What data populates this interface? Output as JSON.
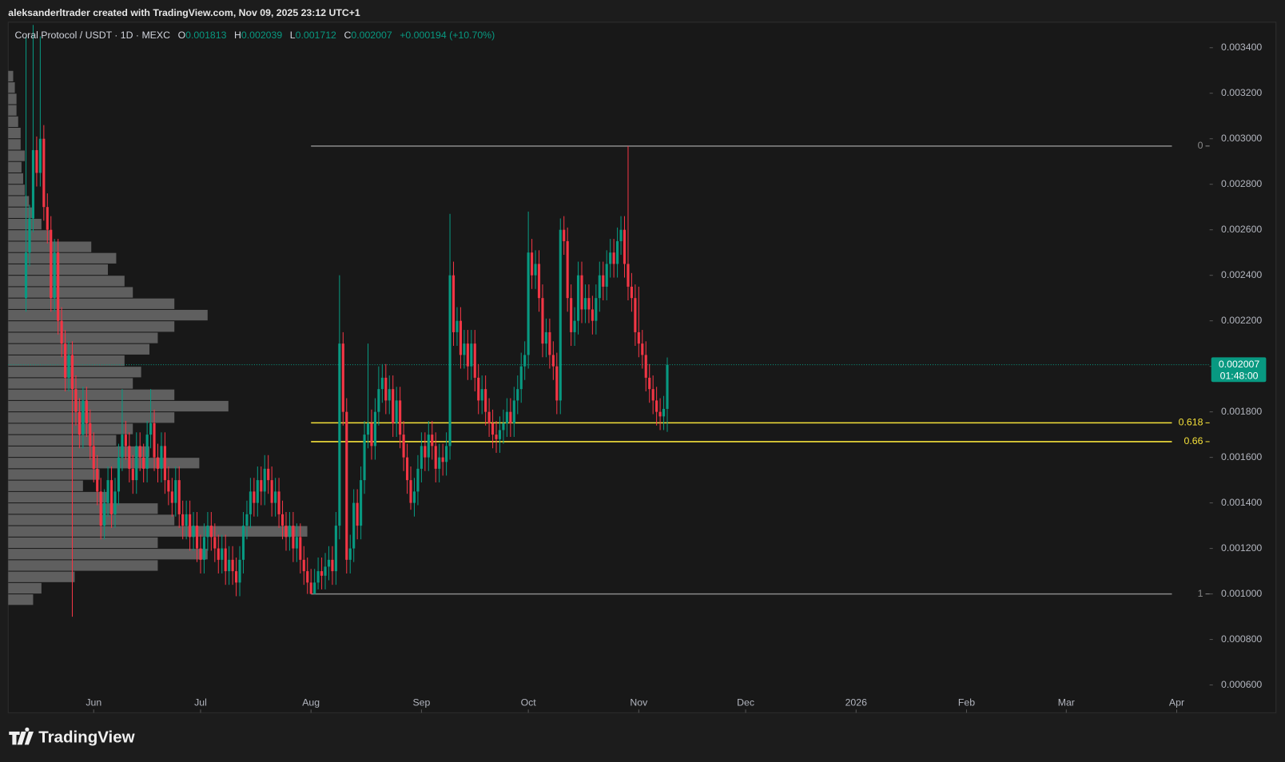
{
  "watermark": "aleksanderltrader created with TradingView.com, Nov 09, 2025 23:12 UTC+1",
  "legend": {
    "symbol": "Coral Protocol / USDT · 1D · MEXC",
    "items": [
      {
        "label": "O",
        "value": "0.001813"
      },
      {
        "label": "H",
        "value": "0.002039"
      },
      {
        "label": "L",
        "value": "0.001712"
      },
      {
        "label": "C",
        "value": "0.002007"
      }
    ],
    "change": "+0.000194 (+10.70%)"
  },
  "logo": "TradingView",
  "chart_data": {
    "type": "candlestick",
    "up_color": "#089981",
    "down_color": "#f23645",
    "x": [
      "2025-05-13",
      "2025-05-14",
      "2025-05-15",
      "2025-05-16",
      "2025-05-17",
      "2025-05-18",
      "2025-05-19",
      "2025-05-20",
      "2025-05-21",
      "2025-05-22",
      "2025-05-23",
      "2025-05-24",
      "2025-05-25",
      "2025-05-26",
      "2025-05-27",
      "2025-05-28",
      "2025-05-29",
      "2025-05-30",
      "2025-05-31",
      "2025-06-01",
      "2025-06-02",
      "2025-06-03",
      "2025-06-04",
      "2025-06-05",
      "2025-06-06",
      "2025-06-07",
      "2025-06-08",
      "2025-06-09",
      "2025-06-10",
      "2025-06-11",
      "2025-06-12",
      "2025-06-13",
      "2025-06-14",
      "2025-06-15",
      "2025-06-16",
      "2025-06-17",
      "2025-06-18",
      "2025-06-19",
      "2025-06-20",
      "2025-06-21",
      "2025-06-22",
      "2025-06-23",
      "2025-06-24",
      "2025-06-25",
      "2025-06-26",
      "2025-06-27",
      "2025-06-28",
      "2025-06-29",
      "2025-06-30",
      "2025-07-01",
      "2025-07-02",
      "2025-07-03",
      "2025-07-04",
      "2025-07-05",
      "2025-07-06",
      "2025-07-07",
      "2025-07-08",
      "2025-07-09",
      "2025-07-10",
      "2025-07-11",
      "2025-07-12",
      "2025-07-13",
      "2025-07-14",
      "2025-07-15",
      "2025-07-16",
      "2025-07-17",
      "2025-07-18",
      "2025-07-19",
      "2025-07-20",
      "2025-07-21",
      "2025-07-22",
      "2025-07-23",
      "2025-07-24",
      "2025-07-25",
      "2025-07-26",
      "2025-07-27",
      "2025-07-28",
      "2025-07-29",
      "2025-07-30",
      "2025-07-31",
      "2025-08-01",
      "2025-08-02",
      "2025-08-03",
      "2025-08-04",
      "2025-08-05",
      "2025-08-06",
      "2025-08-07",
      "2025-08-08",
      "2025-08-09",
      "2025-08-10",
      "2025-08-11",
      "2025-08-12",
      "2025-08-13",
      "2025-08-14",
      "2025-08-15",
      "2025-08-16",
      "2025-08-17",
      "2025-08-18",
      "2025-08-19",
      "2025-08-20",
      "2025-08-21",
      "2025-08-22",
      "2025-08-23",
      "2025-08-24",
      "2025-08-25",
      "2025-08-26",
      "2025-08-27",
      "2025-08-28",
      "2025-08-29",
      "2025-08-30",
      "2025-08-31",
      "2025-09-01",
      "2025-09-02",
      "2025-09-03",
      "2025-09-04",
      "2025-09-05",
      "2025-09-06",
      "2025-09-07",
      "2025-09-08",
      "2025-09-09",
      "2025-09-10",
      "2025-09-11",
      "2025-09-12",
      "2025-09-13",
      "2025-09-14",
      "2025-09-15",
      "2025-09-16",
      "2025-09-17",
      "2025-09-18",
      "2025-09-19",
      "2025-09-20",
      "2025-09-21",
      "2025-09-22",
      "2025-09-23",
      "2025-09-24",
      "2025-09-25",
      "2025-09-26",
      "2025-09-27",
      "2025-09-28",
      "2025-09-29",
      "2025-09-30",
      "2025-10-01",
      "2025-10-02",
      "2025-10-03",
      "2025-10-04",
      "2025-10-05",
      "2025-10-06",
      "2025-10-07",
      "2025-10-08",
      "2025-10-09",
      "2025-10-10",
      "2025-10-11",
      "2025-10-12",
      "2025-10-13",
      "2025-10-14",
      "2025-10-15",
      "2025-10-16",
      "2025-10-17",
      "2025-10-18",
      "2025-10-19",
      "2025-10-20",
      "2025-10-21",
      "2025-10-22",
      "2025-10-23",
      "2025-10-24",
      "2025-10-25",
      "2025-10-26",
      "2025-10-27",
      "2025-10-28",
      "2025-10-29",
      "2025-10-30",
      "2025-10-31",
      "2025-11-01",
      "2025-11-02",
      "2025-11-03",
      "2025-11-04",
      "2025-11-05",
      "2025-11-06",
      "2025-11-07",
      "2025-11-08",
      "2025-11-09"
    ],
    "open": [
      0.0023,
      0.0025,
      0.00265,
      0.00295,
      0.00285,
      0.003,
      0.0027,
      0.0026,
      0.0023,
      0.0025,
      0.0022,
      0.0021,
      0.00195,
      0.00205,
      0.0019,
      0.0018,
      0.0017,
      0.00185,
      0.00175,
      0.00165,
      0.00155,
      0.00145,
      0.0013,
      0.0014,
      0.0015,
      0.00135,
      0.00145,
      0.0016,
      0.0017,
      0.00165,
      0.00155,
      0.0015,
      0.00165,
      0.0016,
      0.00155,
      0.0017,
      0.00175,
      0.0016,
      0.00155,
      0.00165,
      0.0015,
      0.00145,
      0.0014,
      0.0015,
      0.00135,
      0.0013,
      0.00135,
      0.00125,
      0.0013,
      0.0012,
      0.00115,
      0.00125,
      0.0013,
      0.00125,
      0.0012,
      0.00115,
      0.0012,
      0.0011,
      0.00115,
      0.0011,
      0.00105,
      0.00115,
      0.0013,
      0.00135,
      0.00145,
      0.0014,
      0.0015,
      0.00145,
      0.00155,
      0.0015,
      0.0014,
      0.00145,
      0.00135,
      0.0013,
      0.00125,
      0.0013,
      0.0012,
      0.00125,
      0.00115,
      0.0011,
      0.00105,
      0.001,
      0.00105,
      0.0011,
      0.00108,
      0.00112,
      0.00115,
      0.0011,
      0.0013,
      0.0021,
      0.0018,
      0.00115,
      0.0012,
      0.0014,
      0.0013,
      0.0015,
      0.0017,
      0.00175,
      0.00165,
      0.0018,
      0.0019,
      0.00195,
      0.00185,
      0.0019,
      0.00175,
      0.00185,
      0.0017,
      0.0016,
      0.0015,
      0.0014,
      0.00145,
      0.00155,
      0.00165,
      0.0016,
      0.0017,
      0.00165,
      0.00155,
      0.0016,
      0.00158,
      0.00165,
      0.0024,
      0.00215,
      0.0022,
      0.00205,
      0.0021,
      0.002,
      0.0021,
      0.00195,
      0.00185,
      0.0019,
      0.0018,
      0.00175,
      0.0017,
      0.00168,
      0.00172,
      0.00175,
      0.0018,
      0.00175,
      0.00185,
      0.0019,
      0.002,
      0.00205,
      0.0025,
      0.0024,
      0.00245,
      0.0023,
      0.0021,
      0.00215,
      0.00205,
      0.002,
      0.00185,
      0.0026,
      0.00255,
      0.0023,
      0.00215,
      0.0022,
      0.0024,
      0.00225,
      0.0023,
      0.00225,
      0.0022,
      0.0023,
      0.0024,
      0.00235,
      0.00245,
      0.0025,
      0.00245,
      0.00255,
      0.0026,
      0.00245,
      0.00235,
      0.0023,
      0.00215,
      0.0021,
      0.00205,
      0.00195,
      0.0019,
      0.00185,
      0.0018,
      0.00178,
      0.001813
    ],
    "high": [
      0.00345,
      0.00271,
      0.0035,
      0.00301,
      0.00345,
      0.00306,
      0.00276,
      0.00266,
      0.00256,
      0.00256,
      0.00226,
      0.00216,
      0.00211,
      0.00211,
      0.00196,
      0.00186,
      0.00191,
      0.00191,
      0.00181,
      0.00171,
      0.00161,
      0.00151,
      0.00146,
      0.00156,
      0.00156,
      0.00151,
      0.00166,
      0.0019,
      0.00176,
      0.00171,
      0.00161,
      0.00171,
      0.00171,
      0.00166,
      0.00176,
      0.0019,
      0.00181,
      0.00166,
      0.00171,
      0.00171,
      0.00156,
      0.00151,
      0.00156,
      0.00156,
      0.00141,
      0.00141,
      0.00141,
      0.00136,
      0.00136,
      0.00126,
      0.00131,
      0.00136,
      0.00136,
      0.00131,
      0.00126,
      0.00126,
      0.00126,
      0.00121,
      0.00121,
      0.00116,
      0.00121,
      0.00136,
      0.00141,
      0.00151,
      0.00151,
      0.00156,
      0.00156,
      0.00161,
      0.00161,
      0.00156,
      0.00151,
      0.00151,
      0.00141,
      0.00136,
      0.00136,
      0.00136,
      0.00131,
      0.00131,
      0.00121,
      0.00116,
      0.00111,
      0.00111,
      0.00116,
      0.00116,
      0.00118,
      0.00121,
      0.00121,
      0.00136,
      0.0024,
      0.00215,
      0.00186,
      0.00126,
      0.00146,
      0.00146,
      0.00156,
      0.00176,
      0.0021,
      0.00181,
      0.00186,
      0.002,
      0.00201,
      0.00201,
      0.00196,
      0.00196,
      0.00191,
      0.00191,
      0.00176,
      0.00166,
      0.00156,
      0.00151,
      0.00161,
      0.00171,
      0.00171,
      0.00176,
      0.00176,
      0.00171,
      0.00166,
      0.00166,
      0.00171,
      0.00267,
      0.00246,
      0.00226,
      0.00226,
      0.00216,
      0.00216,
      0.00216,
      0.00216,
      0.00201,
      0.00196,
      0.00196,
      0.00186,
      0.00181,
      0.00176,
      0.00178,
      0.00181,
      0.00186,
      0.00186,
      0.00191,
      0.00196,
      0.00206,
      0.00211,
      0.00268,
      0.00256,
      0.00251,
      0.00251,
      0.00236,
      0.00221,
      0.00221,
      0.00211,
      0.00206,
      0.00265,
      0.00266,
      0.00261,
      0.00236,
      0.00226,
      0.00246,
      0.00246,
      0.00236,
      0.00236,
      0.00231,
      0.00236,
      0.00246,
      0.00246,
      0.00251,
      0.00256,
      0.00256,
      0.00261,
      0.00266,
      0.00266,
      0.002968,
      0.00241,
      0.00236,
      0.00235,
      0.00216,
      0.00211,
      0.00201,
      0.00196,
      0.00191,
      0.00186,
      0.00187,
      0.002039
    ],
    "low": [
      0.00224,
      0.00244,
      0.00259,
      0.00279,
      0.00279,
      0.00264,
      0.00254,
      0.00224,
      0.00224,
      0.00214,
      0.00204,
      0.00189,
      0.00189,
      0.0009,
      0.00174,
      0.00164,
      0.00164,
      0.00169,
      0.00159,
      0.00149,
      0.00139,
      0.00124,
      0.00124,
      0.00134,
      0.00129,
      0.00129,
      0.00139,
      0.00154,
      0.00159,
      0.00149,
      0.00144,
      0.00144,
      0.00154,
      0.00149,
      0.00149,
      0.00164,
      0.00154,
      0.00149,
      0.00149,
      0.00144,
      0.00139,
      0.00134,
      0.00134,
      0.00129,
      0.00124,
      0.00124,
      0.00119,
      0.00119,
      0.00114,
      0.00109,
      0.00109,
      0.00119,
      0.00119,
      0.00114,
      0.00109,
      0.00109,
      0.00104,
      0.00104,
      0.00104,
      0.00099,
      0.00099,
      0.00109,
      0.00124,
      0.00129,
      0.00134,
      0.00134,
      0.00139,
      0.00139,
      0.00144,
      0.00134,
      0.00134,
      0.00129,
      0.00124,
      0.00119,
      0.00119,
      0.00114,
      0.00114,
      0.00109,
      0.00104,
      0.001,
      0.001,
      0.001,
      0.00102,
      0.00102,
      0.00102,
      0.00106,
      0.00104,
      0.00104,
      0.00124,
      0.00174,
      0.00109,
      0.00109,
      0.00114,
      0.00124,
      0.00124,
      0.00144,
      0.00164,
      0.00159,
      0.00159,
      0.00174,
      0.00184,
      0.00179,
      0.00179,
      0.00169,
      0.00169,
      0.00164,
      0.00154,
      0.00144,
      0.00137,
      0.00134,
      0.00139,
      0.00149,
      0.00154,
      0.00154,
      0.00159,
      0.00149,
      0.00149,
      0.00152,
      0.00152,
      0.00159,
      0.00209,
      0.00209,
      0.00199,
      0.00199,
      0.00194,
      0.00194,
      0.00189,
      0.00179,
      0.00179,
      0.00174,
      0.00169,
      0.00164,
      0.00162,
      0.00162,
      0.00166,
      0.00169,
      0.00169,
      0.00169,
      0.00179,
      0.00184,
      0.00194,
      0.00199,
      0.00234,
      0.00234,
      0.00224,
      0.00204,
      0.00204,
      0.00199,
      0.00194,
      0.00179,
      0.00179,
      0.00249,
      0.00224,
      0.00209,
      0.00209,
      0.00214,
      0.00219,
      0.00219,
      0.00219,
      0.00214,
      0.00214,
      0.00224,
      0.00229,
      0.00229,
      0.00239,
      0.00239,
      0.00239,
      0.00249,
      0.00239,
      0.00229,
      0.00224,
      0.00209,
      0.00204,
      0.00199,
      0.00189,
      0.00184,
      0.00179,
      0.00174,
      0.00172,
      0.00172,
      0.001712
    ],
    "close": [
      0.0025,
      0.00265,
      0.00295,
      0.00285,
      0.003,
      0.0027,
      0.0026,
      0.0023,
      0.0025,
      0.0022,
      0.0021,
      0.00195,
      0.00205,
      0.0019,
      0.0018,
      0.0017,
      0.00185,
      0.00175,
      0.00165,
      0.00155,
      0.00145,
      0.0013,
      0.0014,
      0.0015,
      0.00135,
      0.00145,
      0.0016,
      0.0017,
      0.00165,
      0.00155,
      0.0015,
      0.00165,
      0.0016,
      0.00155,
      0.0017,
      0.00175,
      0.0016,
      0.00155,
      0.00165,
      0.0015,
      0.00145,
      0.0014,
      0.0015,
      0.00135,
      0.0013,
      0.00135,
      0.00125,
      0.0013,
      0.0012,
      0.00115,
      0.00125,
      0.0013,
      0.00125,
      0.0012,
      0.00115,
      0.0012,
      0.0011,
      0.00115,
      0.0011,
      0.00105,
      0.00115,
      0.0013,
      0.00135,
      0.00145,
      0.0014,
      0.0015,
      0.00145,
      0.00155,
      0.0015,
      0.0014,
      0.00145,
      0.00135,
      0.0013,
      0.00125,
      0.0013,
      0.0012,
      0.00125,
      0.00115,
      0.0011,
      0.00105,
      0.001,
      0.00105,
      0.0011,
      0.00108,
      0.00112,
      0.00115,
      0.0011,
      0.0013,
      0.0021,
      0.0018,
      0.00115,
      0.0012,
      0.0014,
      0.0013,
      0.0015,
      0.0017,
      0.00175,
      0.00165,
      0.0018,
      0.0019,
      0.00195,
      0.00185,
      0.0019,
      0.00175,
      0.00185,
      0.0017,
      0.0016,
      0.0015,
      0.0014,
      0.00145,
      0.00155,
      0.00165,
      0.0016,
      0.0017,
      0.00165,
      0.00155,
      0.0016,
      0.00158,
      0.00165,
      0.0024,
      0.00215,
      0.0022,
      0.00205,
      0.0021,
      0.002,
      0.0021,
      0.00195,
      0.00185,
      0.0019,
      0.0018,
      0.00175,
      0.0017,
      0.00168,
      0.00172,
      0.00175,
      0.0018,
      0.00175,
      0.00185,
      0.0019,
      0.002,
      0.00205,
      0.0025,
      0.0024,
      0.00245,
      0.0023,
      0.0021,
      0.00215,
      0.00205,
      0.002,
      0.00185,
      0.0026,
      0.00255,
      0.0023,
      0.00215,
      0.0022,
      0.0024,
      0.00225,
      0.0023,
      0.00225,
      0.0022,
      0.0023,
      0.0024,
      0.00235,
      0.00245,
      0.0025,
      0.00245,
      0.00255,
      0.0026,
      0.00245,
      0.00235,
      0.0023,
      0.00215,
      0.0021,
      0.00205,
      0.00195,
      0.0019,
      0.00185,
      0.0018,
      0.00178,
      0.001813,
      0.002007
    ],
    "xlim": [
      "2025-05-08",
      "2026-04-10"
    ],
    "xticks": [
      {
        "value": "2025-06-01",
        "label": "Jun"
      },
      {
        "value": "2025-07-01",
        "label": "Jul"
      },
      {
        "value": "2025-08-01",
        "label": "Aug"
      },
      {
        "value": "2025-09-01",
        "label": "Sep"
      },
      {
        "value": "2025-10-01",
        "label": "Oct"
      },
      {
        "value": "2025-11-01",
        "label": "Nov"
      },
      {
        "value": "2025-12-01",
        "label": "Dec"
      },
      {
        "value": "2026-01-01",
        "label": "2026"
      },
      {
        "value": "2026-02-01",
        "label": "Feb"
      },
      {
        "value": "2026-03-01",
        "label": "Mar"
      },
      {
        "value": "2026-04-01",
        "label": "Apr"
      }
    ],
    "ylim": [
      0.000478,
      0.003512
    ],
    "yticks": [
      {
        "value": 0.0034,
        "label": "0.003400"
      },
      {
        "value": 0.0032,
        "label": "0.003200"
      },
      {
        "value": 0.003,
        "label": "0.003000"
      },
      {
        "value": 0.0028,
        "label": "0.002800"
      },
      {
        "value": 0.0026,
        "label": "0.002600"
      },
      {
        "value": 0.0024,
        "label": "0.002400"
      },
      {
        "value": 0.0022,
        "label": "0.002200"
      },
      {
        "value": 0.002,
        "label": "0.002000"
      },
      {
        "value": 0.0018,
        "label": "0.001800"
      },
      {
        "value": 0.0016,
        "label": "0.001600"
      },
      {
        "value": 0.0014,
        "label": "0.001400"
      },
      {
        "value": 0.0012,
        "label": "0.001200"
      },
      {
        "value": 0.001,
        "label": "0.001000"
      },
      {
        "value": 0.0008,
        "label": "0.000800"
      },
      {
        "value": 0.0006,
        "label": "0.000600"
      }
    ],
    "last_price": 0.002007,
    "countdown": "01:48:00",
    "last_price_color": "#089981",
    "fib": {
      "start": "2025-08-01",
      "high": 0.002968,
      "low": 0.001,
      "levels": [
        0,
        0.618,
        0.66,
        1
      ],
      "colors": [
        "#8a8a8a",
        "#f5e13a",
        "#f5e13a",
        "#8a8a8a"
      ]
    },
    "volume_profile": {
      "color": "#9a9a9a",
      "prices": [
        0.00095,
        0.001,
        0.00105,
        0.0011,
        0.00115,
        0.0012,
        0.00125,
        0.0013,
        0.00135,
        0.0014,
        0.00145,
        0.0015,
        0.00155,
        0.0016,
        0.00165,
        0.0017,
        0.00175,
        0.0018,
        0.00185,
        0.0019,
        0.00195,
        0.002,
        0.00205,
        0.0021,
        0.00215,
        0.0022,
        0.00225,
        0.0023,
        0.00235,
        0.0024,
        0.00245,
        0.0025,
        0.00255,
        0.0026,
        0.00265,
        0.0027,
        0.00275,
        0.0028,
        0.00285,
        0.0029,
        0.00295,
        0.003,
        0.00305,
        0.0031,
        0.00315,
        0.0032,
        0.00325
      ],
      "values": [
        30,
        40,
        80,
        180,
        240,
        180,
        360,
        200,
        180,
        120,
        90,
        110,
        230,
        170,
        130,
        150,
        200,
        265,
        200,
        150,
        160,
        140,
        170,
        180,
        200,
        240,
        200,
        150,
        140,
        120,
        130,
        100,
        50,
        40,
        30,
        25,
        20,
        18,
        16,
        20,
        15,
        15,
        12,
        10,
        10,
        8,
        6
      ]
    }
  }
}
